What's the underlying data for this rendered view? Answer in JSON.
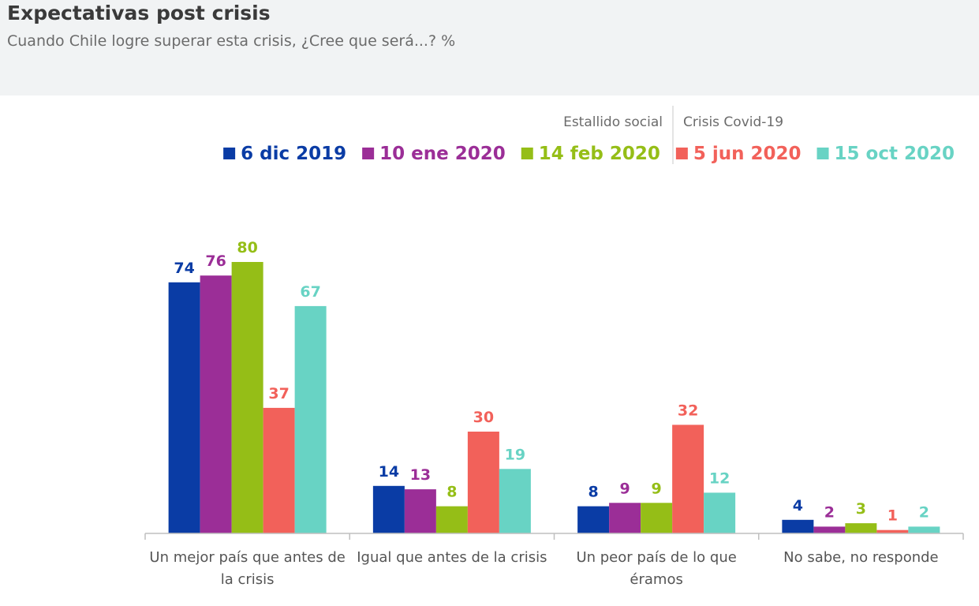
{
  "title": "Expectativas post crisis",
  "subtitle": "Cuando Chile logre superar esta crisis, ¿Cree que será...? %",
  "periods": [
    {
      "label": "Estallido social"
    },
    {
      "label": "Crisis Covid-19"
    }
  ],
  "colors": {
    "background": "#ffffff",
    "header_band": "#f1f3f4",
    "axis": "#bfbfbf",
    "divider": "#c8c8c8"
  },
  "chart_data": {
    "type": "bar",
    "title": "Expectativas post crisis",
    "subtitle": "Cuando Chile logre superar esta crisis, ¿Cree que será...? %",
    "xlabel": "",
    "ylabel": "",
    "ylim": [
      0,
      80
    ],
    "grid": false,
    "legend_position": "top-right",
    "categories": [
      [
        "Un mejor país que antes de",
        "la crisis"
      ],
      [
        "Igual que antes de la crisis"
      ],
      [
        "Un peor país de lo que",
        "éramos"
      ],
      [
        "No sabe, no responde"
      ]
    ],
    "series": [
      {
        "name": "6 dic 2019",
        "color": "#0A3CA5",
        "values": [
          74,
          14,
          8,
          4
        ]
      },
      {
        "name": "10 ene 2020",
        "color": "#9B2E97",
        "values": [
          76,
          13,
          9,
          2
        ]
      },
      {
        "name": "14 feb 2020",
        "color": "#95BE17",
        "values": [
          80,
          8,
          9,
          3
        ]
      },
      {
        "name": "5 jun 2020",
        "color": "#F2615A",
        "values": [
          37,
          30,
          32,
          1
        ]
      },
      {
        "name": "15 oct 2020",
        "color": "#68D3C4",
        "values": [
          67,
          19,
          12,
          2
        ]
      }
    ]
  }
}
